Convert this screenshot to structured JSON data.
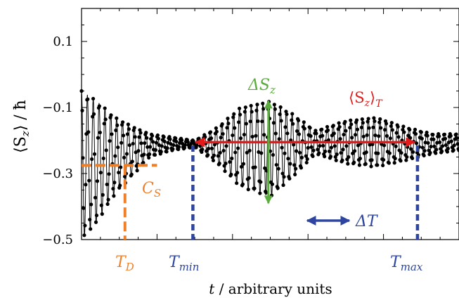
{
  "chart_data": {
    "type": "line",
    "ylabel": "⟨S_z⟩ / ħ",
    "xlabel": "t / arbitrary units",
    "ylim": [
      -0.5,
      0.2
    ],
    "xlim": [
      0,
      100
    ],
    "yticks": [
      0.1,
      -0.1,
      -0.3,
      -0.5
    ],
    "ytick_labels": [
      "0.1",
      "−0.1",
      "−0.3",
      "−0.5"
    ],
    "grid": false,
    "series": [
      {
        "color": "#000000",
        "marker": "dot",
        "description_points": [
          {
            "t": 0,
            "lo": -0.5,
            "hi": -0.05
          },
          {
            "t": 4,
            "lo": -0.45,
            "hi": -0.08
          },
          {
            "t": 9,
            "lo": -0.36,
            "hi": -0.13
          },
          {
            "t": 14,
            "lo": -0.3,
            "hi": -0.16
          },
          {
            "t": 18,
            "lo": -0.25,
            "hi": -0.18
          },
          {
            "t": 24,
            "lo": -0.23,
            "hi": -0.19
          },
          {
            "t": 30,
            "lo": -0.22,
            "hi": -0.2
          },
          {
            "t": 36,
            "lo": -0.27,
            "hi": -0.16
          },
          {
            "t": 42,
            "lo": -0.34,
            "hi": -0.1
          },
          {
            "t": 50,
            "lo": -0.37,
            "hi": -0.08
          },
          {
            "t": 56,
            "lo": -0.31,
            "hi": -0.12
          },
          {
            "t": 62,
            "lo": -0.24,
            "hi": -0.17
          },
          {
            "t": 70,
            "lo": -0.27,
            "hi": -0.14
          },
          {
            "t": 78,
            "lo": -0.28,
            "hi": -0.13
          },
          {
            "t": 86,
            "lo": -0.26,
            "hi": -0.16
          },
          {
            "t": 93,
            "lo": -0.24,
            "hi": -0.18
          },
          {
            "t": 100,
            "lo": -0.23,
            "hi": -0.18
          }
        ]
      }
    ],
    "annotations": {
      "C_S": {
        "text": "C",
        "sub": "S",
        "color": "#f07f2a",
        "y": -0.275,
        "t_start": 0,
        "t_end": 20
      },
      "T_D": {
        "text": "T",
        "sub": "D",
        "color": "#f07f2a",
        "t": 11.5
      },
      "T_min": {
        "text": "T",
        "sub": "min",
        "color": "#2d45a0",
        "t": 29.5
      },
      "T_max": {
        "text": "T",
        "sub": "max",
        "color": "#2d45a0",
        "t": 89
      },
      "delta_T": {
        "text": "ΔT",
        "color": "#2d45a0"
      },
      "delta_S": {
        "text": "ΔS",
        "sub": "z",
        "color": "#5aac3e",
        "lo": -0.39,
        "hi": -0.08
      },
      "mean_S": {
        "text": "⟨S",
        "sub_mid": "z",
        "tail": "⟩",
        "sub": "T",
        "color": "#e21a1a",
        "y": -0.205
      }
    }
  },
  "labels": {
    "ylabel_main": "⟨S",
    "ylabel_sub": "z",
    "ylabel_rest": "⟩ / ħ",
    "xlabel_t": "t",
    "xlabel_rest": " / arbitrary  units"
  }
}
